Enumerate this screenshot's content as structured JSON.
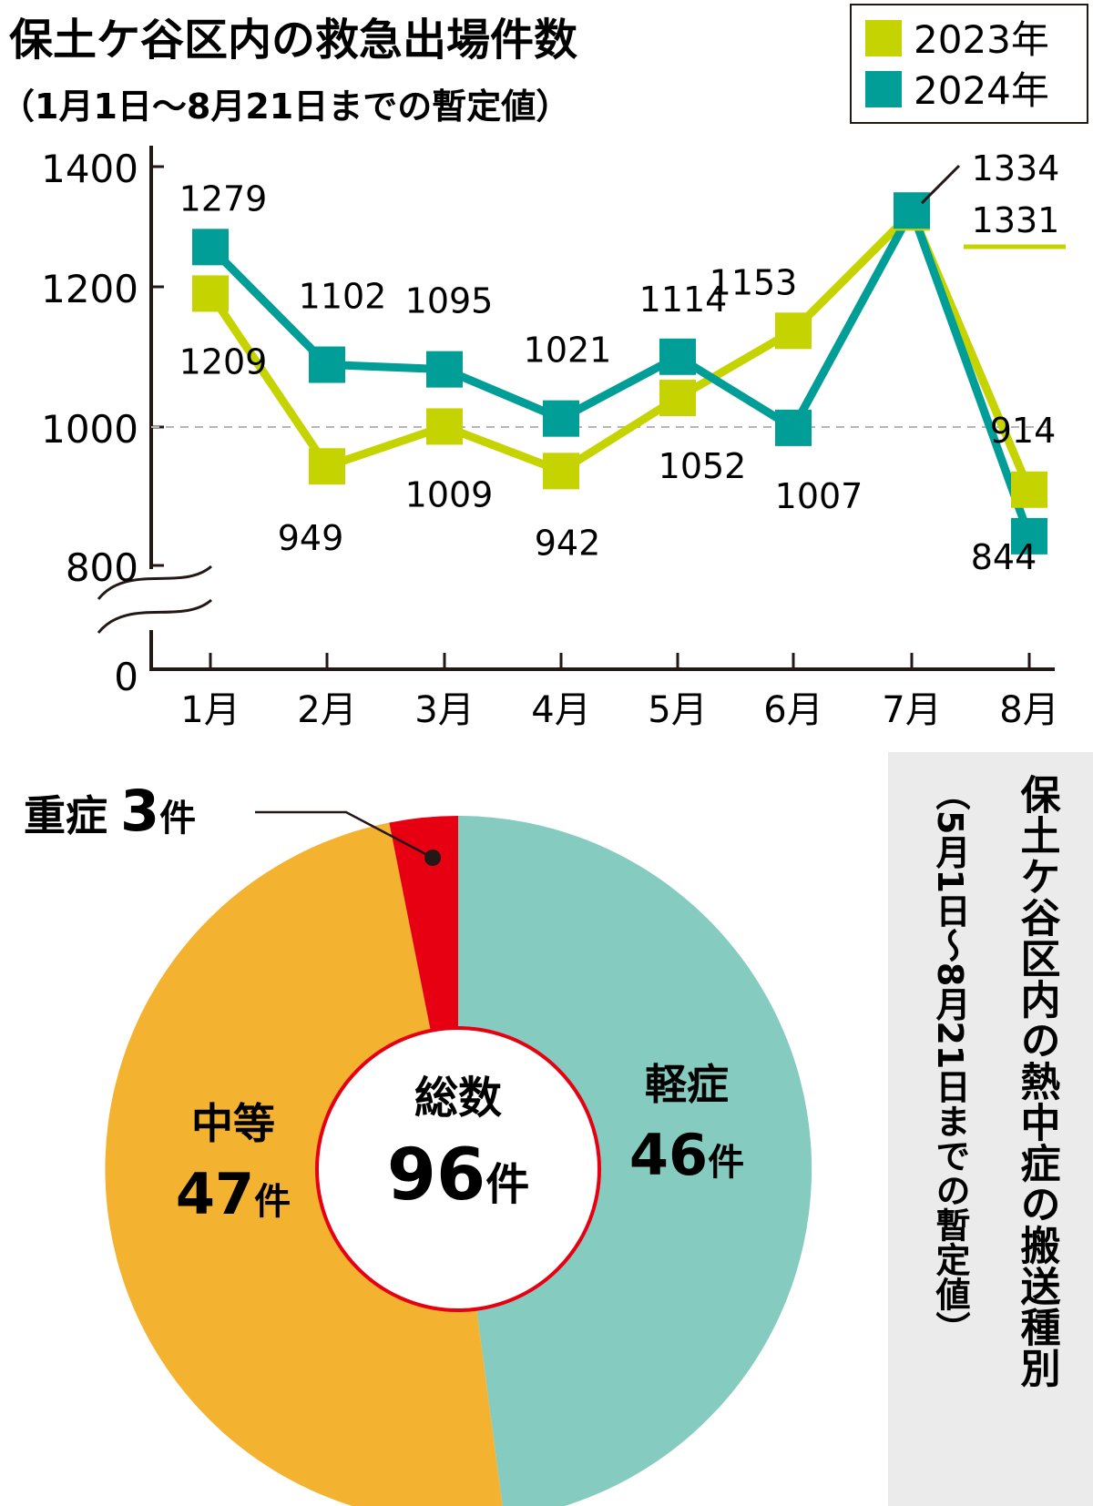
{
  "chart_data": [
    {
      "type": "line",
      "title": "保土ケ谷区内の救急出場件数",
      "subtitle": "（1月1日〜8月21日までの暫定値）",
      "categories": [
        "1月",
        "2月",
        "3月",
        "4月",
        "5月",
        "6月",
        "7月",
        "8月"
      ],
      "series": [
        {
          "name": "2023年",
          "color": "#c5d400",
          "values": [
            1209,
            949,
            1009,
            942,
            1052,
            1153,
            1331,
            914
          ]
        },
        {
          "name": "2024年",
          "color": "#009e96",
          "values": [
            1279,
            1102,
            1095,
            1021,
            1114,
            1007,
            1334,
            844
          ]
        }
      ],
      "y_ticks": [
        "1400",
        "1200",
        "1000",
        "800",
        "0"
      ],
      "ylim": [
        800,
        1400
      ],
      "axis_break": true,
      "reference_line": 1000,
      "legend_position": "top-right"
    },
    {
      "type": "pie",
      "title": "保土ケ谷区内の熱中症の搬送種別",
      "subtitle": "（5月1日〜8月21日までの暫定値）",
      "center_label": "総数",
      "center_value": "96",
      "unit": "件",
      "slices": [
        {
          "label": "軽症",
          "value": 46,
          "color": "#86cbbf"
        },
        {
          "label": "中等",
          "value": 47,
          "color": "#f3b22f"
        },
        {
          "label": "重症",
          "value": 3,
          "color": "#e60012"
        }
      ]
    }
  ]
}
